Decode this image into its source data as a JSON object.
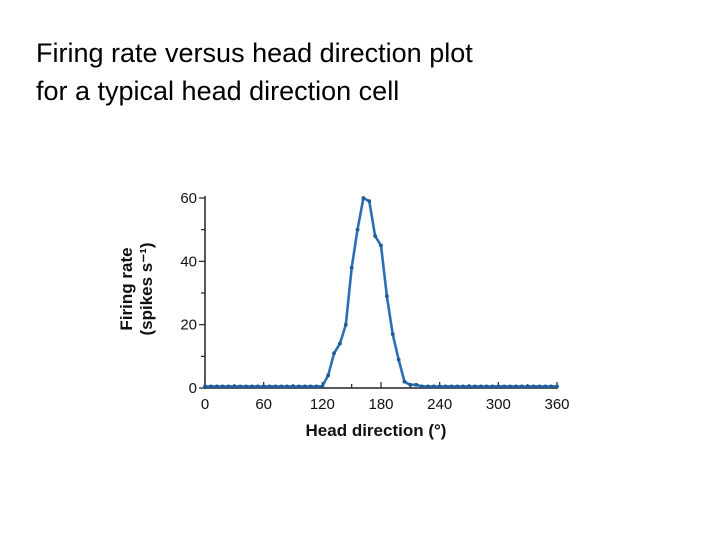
{
  "slide": {
    "title_line1": "Firing rate versus head direction plot",
    "title_line2": "for a typical head direction cell"
  },
  "chart_data": {
    "type": "line",
    "title": "",
    "xlabel": "Head direction (°)",
    "ylabel_line1": "Firing rate",
    "ylabel_line2": "(spikes s⁻¹)",
    "xlim": [
      0,
      360
    ],
    "ylim": [
      0,
      60
    ],
    "xticks": [
      0,
      60,
      120,
      180,
      240,
      300,
      360
    ],
    "yticks": [
      0,
      20,
      40,
      60
    ],
    "grid": false,
    "line_color": "#2a6fb5",
    "series": [
      {
        "x": [
          0,
          6,
          12,
          18,
          24,
          30,
          36,
          42,
          48,
          54,
          60,
          66,
          72,
          78,
          84,
          90,
          96,
          102,
          108,
          114,
          120,
          126,
          132,
          138,
          144,
          150,
          156,
          162,
          168,
          174,
          180,
          186,
          192,
          198,
          204,
          210,
          216,
          222,
          228,
          234,
          240,
          246,
          252,
          258,
          264,
          270,
          276,
          282,
          288,
          294,
          300,
          306,
          312,
          318,
          324,
          330,
          336,
          342,
          348,
          354,
          360
        ],
        "y": [
          0.5,
          0.5,
          0.5,
          0.5,
          0.5,
          0.5,
          0.5,
          0.5,
          0.5,
          0.5,
          0.5,
          0.5,
          0.5,
          0.5,
          0.5,
          0.5,
          0.5,
          0.5,
          0.5,
          0.5,
          0.5,
          4,
          11,
          14,
          20,
          38,
          50,
          60,
          59,
          48,
          45,
          29,
          17,
          9,
          2,
          1,
          1,
          0.5,
          0.5,
          0.5,
          0.5,
          0.5,
          0.5,
          0.5,
          0.5,
          0.5,
          0.5,
          0.5,
          0.5,
          0.5,
          0.5,
          0.5,
          0.5,
          0.5,
          0.5,
          0.5,
          0.5,
          0.5,
          0.5,
          0.5,
          0.5
        ]
      }
    ]
  }
}
